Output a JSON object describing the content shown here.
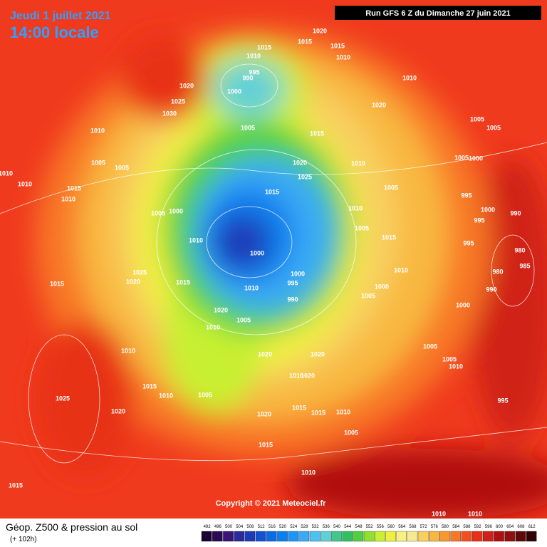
{
  "header": {
    "date": "Jeudi 1 juillet 2021",
    "time": "14:00 locale",
    "run": "Run GFS 6 Z du Dimanche 27 juin 2021"
  },
  "footer": {
    "copyright": "Copyright © 2021 Meteociel.fr",
    "title": "Géop. Z500 & pression au sol",
    "subtitle": "(+ 102h)"
  },
  "scale": {
    "labels": [
      "492",
      "496",
      "500",
      "504",
      "508",
      "512",
      "516",
      "520",
      "524",
      "528",
      "532",
      "536",
      "540",
      "544",
      "548",
      "552",
      "556",
      "560",
      "564",
      "568",
      "572",
      "576",
      "580",
      "584",
      "588",
      "592",
      "596",
      "600",
      "604",
      "608",
      "612"
    ],
    "colors": [
      "#1a0033",
      "#2a0a55",
      "#3a1478",
      "#2a2a9a",
      "#1e3ab8",
      "#1450d0",
      "#0a6ae8",
      "#0a80f0",
      "#1e96f5",
      "#3aaaf5",
      "#50c0f0",
      "#60d0d8",
      "#40c890",
      "#30c060",
      "#50d040",
      "#90e030",
      "#c8f030",
      "#f0f040",
      "#f8f080",
      "#f8e890",
      "#f8d060",
      "#f8b840",
      "#f89830",
      "#f87828",
      "#f05020",
      "#e83018",
      "#d02018",
      "#b01010",
      "#901010",
      "#600808",
      "#300404"
    ]
  },
  "isobar_labels": [
    "1020",
    "1015",
    "1015",
    "1015",
    "1010",
    "1010",
    "995",
    "990",
    "1000",
    "1020",
    "1025",
    "1030",
    "1010",
    "1005",
    "1015",
    "1020",
    "1010",
    "1005",
    "1005",
    "1005",
    "1000",
    "1010",
    "1020",
    "1025",
    "1005",
    "995",
    "1000",
    "990",
    "995",
    "995",
    "1010",
    "1005",
    "1015",
    "1015",
    "1005",
    "1005",
    "1010",
    "1010",
    "1015",
    "1010",
    "1005",
    "1000",
    "1010",
    "1000",
    "1025",
    "1020",
    "1015",
    "1015",
    "1000",
    "995",
    "990",
    "1010",
    "1010",
    "1000",
    "1005",
    "1020",
    "1005",
    "1010",
    "1010",
    "1020",
    "1020",
    "1010",
    "1020",
    "1005",
    "1010",
    "1015",
    "1025",
    "1020",
    "1015",
    "1015",
    "1010",
    "1020",
    "1005",
    "1015",
    "1010",
    "1015",
    "1005",
    "1005",
    "1010",
    "995",
    "1010",
    "1010",
    "980",
    "985",
    "980",
    "990",
    "1000"
  ]
}
